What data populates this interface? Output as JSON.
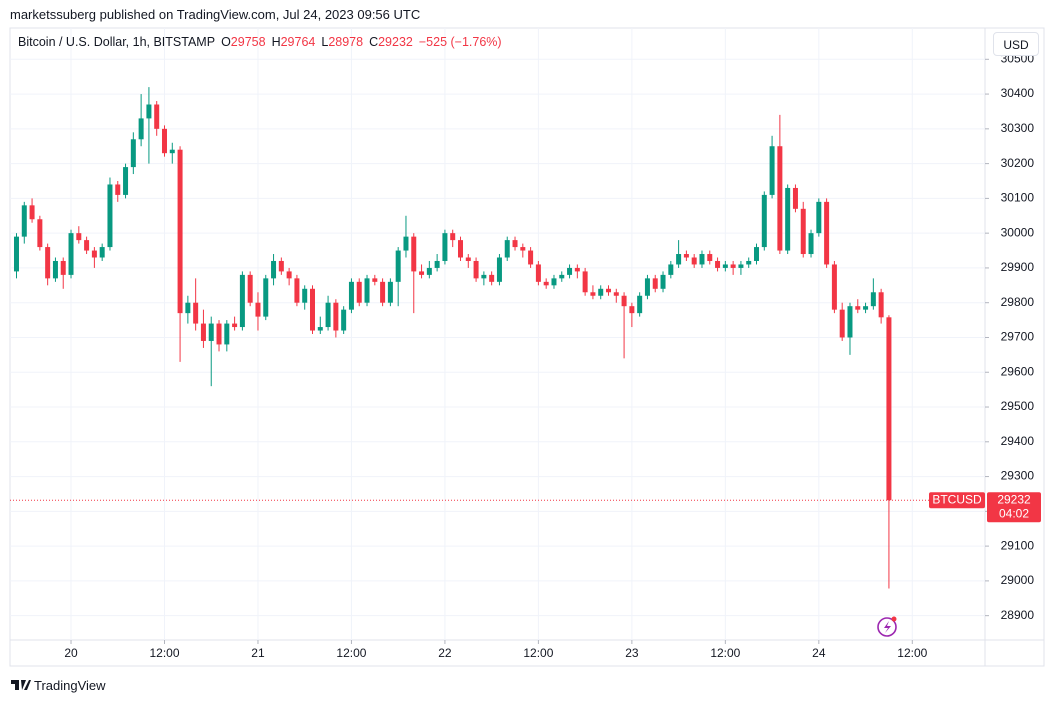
{
  "header": {
    "publisher": "marketssuberg published on TradingView.com, Jul 24, 2023 09:56 UTC"
  },
  "chart_data": {
    "type": "candlestick",
    "title": "Bitcoin / U.S. Dollar, 1h, BITSTAMP",
    "legend_labels": [
      "O",
      "H",
      "L",
      "C"
    ],
    "change": "−525 (−1.76%)",
    "symbol": "BTCUSD",
    "countdown": "04:02",
    "currency": "USD",
    "x": [
      "2023-07-19 17:00",
      "2023-07-19 18:00",
      "2023-07-19 19:00",
      "2023-07-19 20:00",
      "2023-07-19 21:00",
      "2023-07-19 22:00",
      "2023-07-19 23:00",
      "2023-07-20 00:00",
      "2023-07-20 01:00",
      "2023-07-20 02:00",
      "2023-07-20 03:00",
      "2023-07-20 04:00",
      "2023-07-20 05:00",
      "2023-07-20 06:00",
      "2023-07-20 07:00",
      "2023-07-20 08:00",
      "2023-07-20 09:00",
      "2023-07-20 10:00",
      "2023-07-20 11:00",
      "2023-07-20 12:00",
      "2023-07-20 13:00",
      "2023-07-20 14:00",
      "2023-07-20 15:00",
      "2023-07-20 16:00",
      "2023-07-20 17:00",
      "2023-07-20 18:00",
      "2023-07-20 19:00",
      "2023-07-20 20:00",
      "2023-07-20 21:00",
      "2023-07-20 22:00",
      "2023-07-20 23:00",
      "2023-07-21 00:00",
      "2023-07-21 01:00",
      "2023-07-21 02:00",
      "2023-07-21 03:00",
      "2023-07-21 04:00",
      "2023-07-21 05:00",
      "2023-07-21 06:00",
      "2023-07-21 07:00",
      "2023-07-21 08:00",
      "2023-07-21 09:00",
      "2023-07-21 10:00",
      "2023-07-21 11:00",
      "2023-07-21 12:00",
      "2023-07-21 13:00",
      "2023-07-21 14:00",
      "2023-07-21 15:00",
      "2023-07-21 16:00",
      "2023-07-21 17:00",
      "2023-07-21 18:00",
      "2023-07-21 19:00",
      "2023-07-21 20:00",
      "2023-07-21 21:00",
      "2023-07-21 22:00",
      "2023-07-21 23:00",
      "2023-07-22 00:00",
      "2023-07-22 01:00",
      "2023-07-22 02:00",
      "2023-07-22 03:00",
      "2023-07-22 04:00",
      "2023-07-22 05:00",
      "2023-07-22 06:00",
      "2023-07-22 07:00",
      "2023-07-22 08:00",
      "2023-07-22 09:00",
      "2023-07-22 10:00",
      "2023-07-22 11:00",
      "2023-07-22 12:00",
      "2023-07-22 13:00",
      "2023-07-22 14:00",
      "2023-07-22 15:00",
      "2023-07-22 16:00",
      "2023-07-22 17:00",
      "2023-07-22 18:00",
      "2023-07-22 19:00",
      "2023-07-22 20:00",
      "2023-07-22 21:00",
      "2023-07-22 22:00",
      "2023-07-22 23:00",
      "2023-07-23 00:00",
      "2023-07-23 01:00",
      "2023-07-23 02:00",
      "2023-07-23 03:00",
      "2023-07-23 04:00",
      "2023-07-23 05:00",
      "2023-07-23 06:00",
      "2023-07-23 07:00",
      "2023-07-23 08:00",
      "2023-07-23 09:00",
      "2023-07-23 10:00",
      "2023-07-23 11:00",
      "2023-07-23 12:00",
      "2023-07-23 13:00",
      "2023-07-23 14:00",
      "2023-07-23 15:00",
      "2023-07-23 16:00",
      "2023-07-23 17:00",
      "2023-07-23 18:00",
      "2023-07-23 19:00",
      "2023-07-23 20:00",
      "2023-07-23 21:00",
      "2023-07-23 22:00",
      "2023-07-23 23:00",
      "2023-07-24 00:00",
      "2023-07-24 01:00",
      "2023-07-24 02:00",
      "2023-07-24 03:00",
      "2023-07-24 04:00",
      "2023-07-24 05:00",
      "2023-07-24 06:00",
      "2023-07-24 07:00",
      "2023-07-24 08:00",
      "2023-07-24 09:00"
    ],
    "open": [
      29890,
      29990,
      30080,
      30040,
      29960,
      29870,
      29920,
      29880,
      30000,
      29980,
      29950,
      29930,
      29960,
      30140,
      30110,
      30190,
      30270,
      30330,
      30370,
      30300,
      30230,
      30240,
      29770,
      29800,
      29740,
      29690,
      29740,
      29680,
      29740,
      29730,
      29880,
      29800,
      29760,
      29870,
      29920,
      29890,
      29870,
      29800,
      29840,
      29720,
      29730,
      29800,
      29720,
      29780,
      29860,
      29800,
      29870,
      29860,
      29800,
      29860,
      29950,
      29990,
      29890,
      29880,
      29900,
      29920,
      30000,
      29980,
      29930,
      29920,
      29870,
      29880,
      29860,
      29930,
      29980,
      29960,
      29950,
      29910,
      29860,
      29850,
      29870,
      29880,
      29900,
      29890,
      29830,
      29820,
      29840,
      29830,
      29820,
      29790,
      29770,
      29820,
      29870,
      29840,
      29880,
      29910,
      29940,
      29930,
      29910,
      29940,
      29920,
      29900,
      29910,
      29900,
      29910,
      29920,
      29960,
      30110,
      30250,
      29950,
      30130,
      30070,
      29940,
      30000,
      30090,
      29910,
      29780,
      29700,
      29790,
      29780,
      29790,
      29830,
      29758
    ],
    "high": [
      30000,
      30090,
      30100,
      30050,
      29970,
      29930,
      29930,
      30010,
      30020,
      29990,
      29960,
      29970,
      30160,
      30150,
      30200,
      30290,
      30400,
      30420,
      30380,
      30310,
      30260,
      30250,
      29820,
      29870,
      29780,
      29760,
      29750,
      29750,
      29760,
      29890,
      29890,
      29830,
      29880,
      29940,
      29930,
      29900,
      29880,
      29850,
      29850,
      29760,
      29820,
      29810,
      29790,
      29870,
      29870,
      29880,
      29880,
      29870,
      29870,
      29960,
      30050,
      30000,
      29910,
      29920,
      29940,
      30010,
      30010,
      29990,
      29940,
      29930,
      29890,
      29890,
      29940,
      29990,
      29990,
      29970,
      29960,
      29920,
      29870,
      29880,
      29890,
      29910,
      29910,
      29900,
      29850,
      29850,
      29850,
      29840,
      29830,
      29800,
      29830,
      29880,
      29880,
      29890,
      29920,
      29980,
      29950,
      29940,
      29950,
      29950,
      29930,
      29920,
      29920,
      29920,
      29930,
      29970,
      30120,
      30280,
      30340,
      30140,
      30140,
      30090,
      30010,
      30100,
      30100,
      29920,
      29800,
      29800,
      29810,
      29800,
      29870,
      29840,
      29764
    ],
    "low": [
      29870,
      29970,
      30030,
      29950,
      29850,
      29860,
      29840,
      29870,
      29970,
      29940,
      29900,
      29920,
      29950,
      30090,
      30100,
      30170,
      30250,
      30200,
      30280,
      30220,
      30200,
      29630,
      29740,
      29720,
      29670,
      29560,
      29660,
      29660,
      29720,
      29720,
      29790,
      29720,
      29750,
      29850,
      29880,
      29850,
      29790,
      29780,
      29710,
      29710,
      29720,
      29700,
      29710,
      29770,
      29790,
      29790,
      29850,
      29790,
      29790,
      29790,
      29930,
      29770,
      29870,
      29870,
      29890,
      29910,
      29960,
      29920,
      29900,
      29860,
      29850,
      29850,
      29850,
      29920,
      29950,
      29930,
      29900,
      29850,
      29840,
      29840,
      29860,
      29870,
      29870,
      29820,
      29810,
      29810,
      29820,
      29800,
      29640,
      29730,
      29760,
      29810,
      29830,
      29830,
      29870,
      29900,
      29920,
      29900,
      29900,
      29910,
      29890,
      29890,
      29880,
      29880,
      29900,
      29910,
      29950,
      30100,
      29940,
      29940,
      30060,
      29930,
      29930,
      29990,
      29900,
      29770,
      29690,
      29650,
      29770,
      29770,
      29780,
      29740,
      28978
    ],
    "close": [
      29990,
      30080,
      30040,
      29960,
      29870,
      29920,
      29880,
      30000,
      29980,
      29950,
      29930,
      29960,
      30140,
      30110,
      30190,
      30270,
      30330,
      30370,
      30300,
      30230,
      30240,
      29770,
      29800,
      29740,
      29690,
      29740,
      29680,
      29740,
      29730,
      29880,
      29800,
      29760,
      29870,
      29920,
      29890,
      29870,
      29800,
      29840,
      29720,
      29730,
      29800,
      29720,
      29780,
      29860,
      29800,
      29870,
      29860,
      29800,
      29860,
      29950,
      29990,
      29890,
      29880,
      29900,
      29920,
      30000,
      29980,
      29930,
      29920,
      29870,
      29880,
      29860,
      29930,
      29980,
      29960,
      29950,
      29910,
      29860,
      29850,
      29870,
      29880,
      29900,
      29890,
      29830,
      29820,
      29840,
      29830,
      29820,
      29790,
      29770,
      29820,
      29870,
      29840,
      29880,
      29910,
      29940,
      29930,
      29910,
      29940,
      29920,
      29900,
      29910,
      29900,
      29910,
      29920,
      29960,
      30110,
      30250,
      29950,
      30130,
      30070,
      29940,
      30000,
      30090,
      29910,
      29780,
      29700,
      29790,
      29780,
      29790,
      29830,
      29758,
      29232
    ],
    "up_color": "#089981",
    "down_color": "#f23645",
    "ylim": [
      28830,
      30590
    ],
    "yticks": [
      28900,
      29000,
      29100,
      29200,
      29300,
      29400,
      29500,
      29600,
      29700,
      29800,
      29900,
      30000,
      30100,
      30200,
      30300,
      30400,
      30500
    ],
    "xlim": [
      "2023-07-19 16:10",
      "2023-07-24 21:20"
    ],
    "xticks": [
      {
        "value": "2023-07-20 00:00",
        "label": "20"
      },
      {
        "value": "2023-07-20 12:00",
        "label": "12:00"
      },
      {
        "value": "2023-07-21 00:00",
        "label": "21"
      },
      {
        "value": "2023-07-21 12:00",
        "label": "12:00"
      },
      {
        "value": "2023-07-22 00:00",
        "label": "22"
      },
      {
        "value": "2023-07-22 12:00",
        "label": "12:00"
      },
      {
        "value": "2023-07-23 00:00",
        "label": "23"
      },
      {
        "value": "2023-07-23 12:00",
        "label": "12:00"
      },
      {
        "value": "2023-07-24 00:00",
        "label": "24"
      },
      {
        "value": "2023-07-24 12:00",
        "label": "12:00"
      }
    ],
    "grid": true
  },
  "footer": {
    "brand": "TradingView"
  }
}
